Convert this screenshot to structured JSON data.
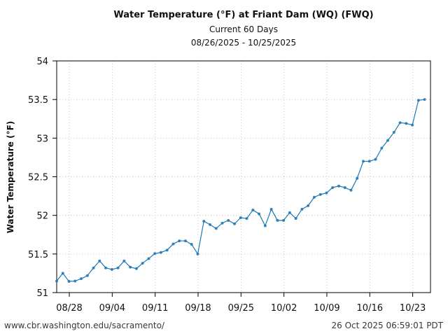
{
  "chart_data": {
    "type": "line",
    "title": "Water Temperature (°F) at Friant Dam (WQ) (FWQ)",
    "subtitle": "Current 60 Days",
    "date_range": "08/26/2025 - 10/25/2025",
    "xlabel": "",
    "ylabel": "Water Temperature (°F)",
    "ylim": [
      51,
      54
    ],
    "yticks": [
      "51",
      "51.5",
      "52",
      "52.5",
      "53",
      "53.5",
      "54"
    ],
    "ytick_values": [
      51,
      51.5,
      52,
      52.5,
      53,
      53.5,
      54
    ],
    "xticks": [
      "08/28",
      "09/04",
      "09/11",
      "09/18",
      "09/25",
      "10/02",
      "10/09",
      "10/16",
      "10/23"
    ],
    "xtick_day_index": [
      2,
      9,
      16,
      23,
      30,
      37,
      44,
      51,
      58
    ],
    "x_day_range": [
      0,
      61
    ],
    "grid": true,
    "line_color": "#1f77b4",
    "series": [
      {
        "name": "Water Temperature",
        "x": [
          "08/26",
          "08/27",
          "08/28",
          "08/29",
          "08/30",
          "08/31",
          "09/01",
          "09/02",
          "09/03",
          "09/04",
          "09/05",
          "09/06",
          "09/07",
          "09/08",
          "09/09",
          "09/10",
          "09/11",
          "09/12",
          "09/13",
          "09/14",
          "09/15",
          "09/16",
          "09/17",
          "09/18",
          "09/19",
          "09/20",
          "09/21",
          "09/22",
          "09/23",
          "09/24",
          "09/25",
          "09/26",
          "09/27",
          "09/28",
          "09/29",
          "09/30",
          "10/01",
          "10/02",
          "10/03",
          "10/04",
          "10/05",
          "10/06",
          "10/07",
          "10/08",
          "10/09",
          "10/10",
          "10/11",
          "10/12",
          "10/13",
          "10/14",
          "10/15",
          "10/16",
          "10/17",
          "10/18",
          "10/19",
          "10/20",
          "10/21",
          "10/22",
          "10/23",
          "10/24",
          "10/25"
        ],
        "values": [
          51.15,
          51.25,
          51.145,
          51.15,
          51.18,
          51.22,
          51.32,
          51.41,
          51.32,
          51.3,
          51.32,
          51.41,
          51.33,
          51.31,
          51.38,
          51.44,
          51.505,
          51.52,
          51.55,
          51.63,
          51.67,
          51.67,
          51.625,
          51.5,
          51.925,
          51.88,
          51.83,
          51.9,
          51.935,
          51.89,
          51.97,
          51.96,
          52.07,
          52.02,
          51.865,
          52.08,
          51.935,
          51.935,
          52.035,
          51.96,
          52.08,
          52.125,
          52.235,
          52.27,
          52.29,
          52.36,
          52.38,
          52.36,
          52.325,
          52.48,
          52.7,
          52.7,
          52.725,
          52.87,
          52.97,
          53.075,
          53.2,
          53.19,
          53.17,
          53.49,
          53.5
        ]
      }
    ]
  },
  "footer": {
    "url": "www.cbr.washington.edu/sacramento/",
    "timestamp": "26 Oct 2025 06:59:01 PDT"
  }
}
